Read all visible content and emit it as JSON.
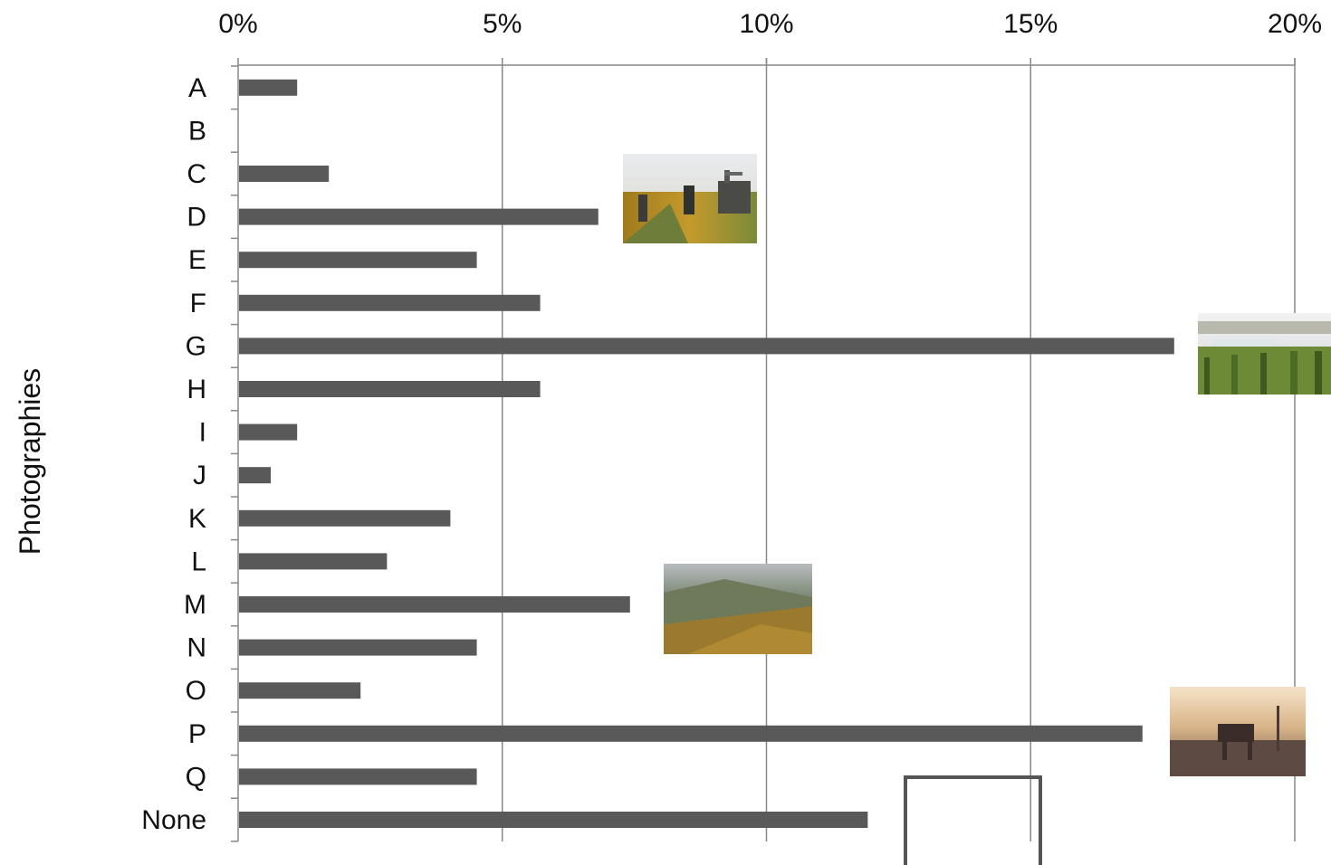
{
  "chart_data": {
    "type": "bar",
    "orientation": "horizontal",
    "title": "",
    "xlabel": "",
    "ylabel": "Photographies",
    "categories": [
      "A",
      "B",
      "C",
      "D",
      "E",
      "F",
      "G",
      "H",
      "I",
      "J",
      "K",
      "L",
      "M",
      "N",
      "O",
      "P",
      "Q",
      "None"
    ],
    "values": [
      1.1,
      0,
      1.7,
      6.8,
      4.5,
      5.7,
      17.7,
      5.7,
      1.1,
      0.6,
      4.0,
      2.8,
      7.4,
      4.5,
      2.3,
      17.1,
      4.5,
      11.9
    ],
    "xlim": [
      0,
      20
    ],
    "xticks": [
      "0%",
      "5%",
      "10%",
      "15%",
      "20%"
    ],
    "grid": true,
    "bar_color": "#595959",
    "gridline_color": "#888888",
    "x_axis_position": "top",
    "inset_photos": [
      {
        "name": "photo-harvest-tractor",
        "near_category": "D"
      },
      {
        "name": "photo-vineyard-town",
        "near_category": "G"
      },
      {
        "name": "photo-vineyard-valley",
        "near_category": "M"
      },
      {
        "name": "photo-horse-sunset",
        "near_category": "P"
      },
      {
        "name": "photo-empty-frame",
        "near_category": "None"
      }
    ]
  }
}
